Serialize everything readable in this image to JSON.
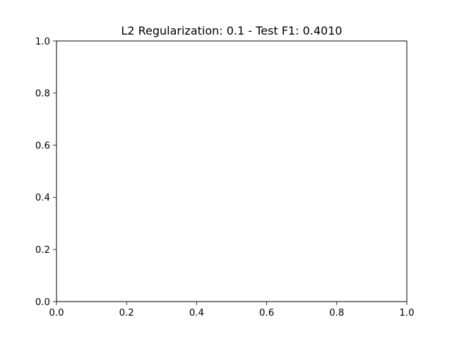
{
  "chart_data": {
    "type": "line",
    "title": "L2 Regularization: 0.1 - Test F1: 0.4010",
    "xlabel": "",
    "ylabel": "",
    "xlim": [
      0.0,
      1.0
    ],
    "ylim": [
      0.0,
      1.0
    ],
    "x_ticks": [
      "0.0",
      "0.2",
      "0.4",
      "0.6",
      "0.8",
      "1.0"
    ],
    "y_ticks": [
      "0.0",
      "0.2",
      "0.4",
      "0.6",
      "0.8",
      "1.0"
    ],
    "series": [],
    "grid": false,
    "legend": "none",
    "colors": {
      "axes": "#000000",
      "background": "#ffffff"
    }
  }
}
